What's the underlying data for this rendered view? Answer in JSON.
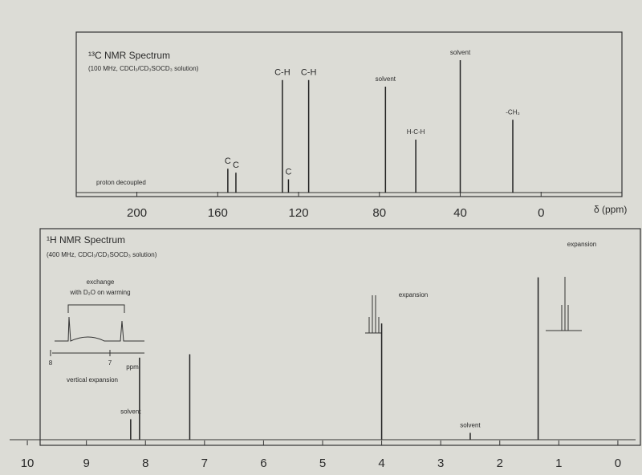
{
  "chart_data": [
    {
      "type": "stem",
      "title": "¹³C NMR Spectrum",
      "subtitle": "(100 MHz, CDCl₃/CD₃SOCD₃ solution)",
      "note": "proton decoupled",
      "x_label": "δ (ppm)",
      "xlim": [
        230,
        -40
      ],
      "xticks": [
        200,
        160,
        120,
        80,
        40,
        0
      ],
      "x": [
        155,
        151,
        128,
        125,
        115,
        77,
        62,
        40,
        14
      ],
      "values": [
        18,
        15,
        85,
        10,
        85,
        80,
        40,
        100,
        55
      ],
      "peak_labels": [
        "C",
        "C",
        "C-H",
        "C",
        "C-H",
        "solvent",
        "H-C-H",
        "solvent",
        "-CH₃"
      ],
      "color": "#222"
    },
    {
      "type": "stem",
      "title": "¹H NMR Spectrum",
      "subtitle": "(400 MHz, CDCl₃/CD₃SOCD₃ solution)",
      "annotations": [
        "expansion",
        "expansion",
        "exchange",
        "with D₂O on warming",
        "vertical expansion",
        "8",
        "7",
        "ppm"
      ],
      "xlim": [
        10.3,
        -0.3
      ],
      "xticks": [
        10,
        9,
        8,
        7,
        6,
        5,
        4,
        3,
        2,
        1,
        0
      ],
      "x": [
        8.25,
        8.1,
        7.25,
        4.0,
        2.5,
        1.35
      ],
      "values": [
        12,
        48,
        50,
        68,
        4,
        95
      ],
      "peak_labels": [
        "solvent",
        null,
        null,
        null,
        "solvent",
        null
      ],
      "color": "#222"
    }
  ]
}
